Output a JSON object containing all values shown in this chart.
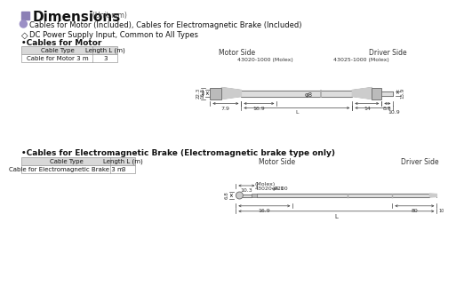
{
  "title": "Dimensions",
  "title_unit": "(Unit mm)",
  "bg_color": "#ffffff",
  "title_square_color": "#8b7fb5",
  "bullet_circle_color": "#9b8fc5",
  "section1_header": "Cables for Motor (Included), Cables for Electromagnetic Brake (Included)",
  "section1_sub": "DC Power Supply Input, Common to All Types",
  "section1_label": "Cables for Motor",
  "table1_headers": [
    "Cable Type",
    "Length L (m)"
  ],
  "table1_rows": [
    [
      "Cable for Motor 3 m",
      "3"
    ]
  ],
  "section2_label": "Cables for Electromagnetic Brake (Electromagnetic brake type only)",
  "table2_headers": [
    "Cable Type",
    "Length L (m)"
  ],
  "table2_rows": [
    [
      "Cable for Electromagnetic Brake 3 m",
      "3"
    ]
  ],
  "diagram1": {
    "motor_side_label": "Motor Side",
    "driver_side_label": "Driver Side",
    "connector1_label": "43020-1000 (Molex)",
    "connector2_label": "43025-1000 (Molex)",
    "dim_22_3": "22.3",
    "dim_16_5": "16.5",
    "dim_7_9": "7.9",
    "dim_16_9": "16.9",
    "dim_d8": "φ8",
    "dim_14": "14",
    "dim_8_3": "8.3",
    "dim_10_9": "10.9",
    "dim_15_9": "15.9",
    "dim_L": "L"
  },
  "diagram2": {
    "motor_side_label": "Motor Side",
    "driver_side_label": "Driver Side",
    "connector_label1": "43020-0200",
    "connector_label2": "(Molex)",
    "dim_d4_1": "φ4.1",
    "dim_10_3": "10.3",
    "dim_6_8": "6.8",
    "dim_16_9": "16.9",
    "dim_80": "80",
    "dim_10": "10",
    "dim_L": "L"
  }
}
